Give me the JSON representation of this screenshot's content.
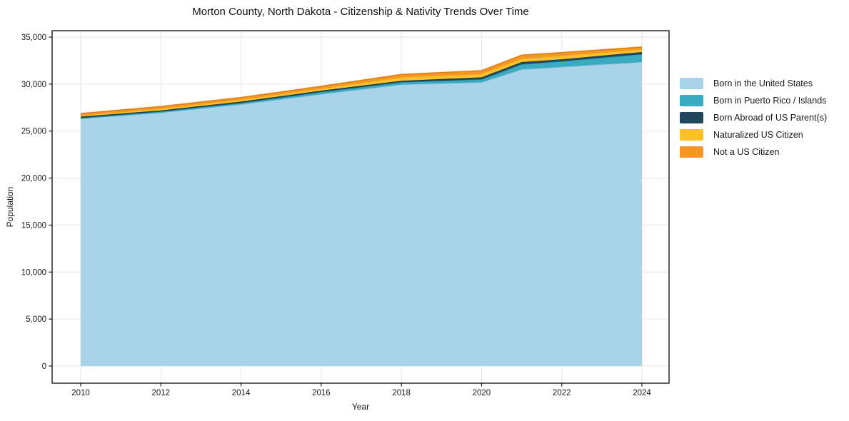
{
  "title": "Morton County, North Dakota - Citizenship & Nativity Trends Over Time",
  "axes": {
    "x_label": "Year",
    "y_label": "Population",
    "x_tick_labels": [
      "2010",
      "2012",
      "2014",
      "2016",
      "2018",
      "2020",
      "2022",
      "2024"
    ],
    "y_tick_labels": [
      "0",
      "5,000",
      "10,000",
      "15,000",
      "20,000",
      "25,000",
      "30,000",
      "35,000"
    ]
  },
  "colors": {
    "background": "#ffffff",
    "gridline": "#e6e6e6",
    "spine": "#1a1a1a",
    "tick_text": "#1a1a1a"
  },
  "chart_data": {
    "type": "area",
    "stacked": true,
    "title": "Morton County, North Dakota - Citizenship & Nativity Trends Over Time",
    "xlabel": "Year",
    "ylabel": "Population",
    "grid": true,
    "legend_position": "right",
    "xlim": [
      2009.3,
      2024.7
    ],
    "ylim": [
      -1850,
      35710
    ],
    "x_ticks": [
      2010,
      2012,
      2014,
      2016,
      2018,
      2020,
      2022,
      2024
    ],
    "y_ticks": [
      0,
      5000,
      10000,
      15000,
      20000,
      25000,
      30000,
      35000
    ],
    "x": [
      2010,
      2011,
      2012,
      2013,
      2014,
      2015,
      2016,
      2017,
      2018,
      2019,
      2020,
      2021,
      2022,
      2023,
      2024
    ],
    "series": [
      {
        "name": "Born in the United States",
        "color": "#a9d3e8",
        "edge_color": "#8ec4e0",
        "values": [
          26310,
          26630,
          26950,
          27400,
          27840,
          28380,
          28930,
          29440,
          29950,
          30070,
          30190,
          31560,
          31830,
          32090,
          32340
        ]
      },
      {
        "name": "Born in Puerto Rico / Islands",
        "color": "#3aabc0",
        "edge_color": "#2b96aa",
        "values": [
          80,
          105,
          130,
          140,
          150,
          190,
          225,
          240,
          250,
          280,
          310,
          550,
          590,
          715,
          840
        ]
      },
      {
        "name": "Born Abroad of US Parent(s)",
        "color": "#20475c",
        "edge_color": "#15374a",
        "values": [
          150,
          135,
          120,
          135,
          150,
          150,
          150,
          150,
          150,
          185,
          220,
          230,
          220,
          225,
          230
        ]
      },
      {
        "name": "Naturalized US Citizen",
        "color": "#fcc02d",
        "edge_color": "#edaa14",
        "values": [
          150,
          175,
          200,
          215,
          230,
          230,
          230,
          305,
          380,
          380,
          380,
          380,
          380,
          345,
          310
        ]
      },
      {
        "name": "Not a US Citizen",
        "color": "#f59627",
        "edge_color": "#e07f14",
        "values": [
          180,
          195,
          210,
          205,
          200,
          215,
          230,
          265,
          300,
          315,
          330,
          360,
          330,
          275,
          220
        ]
      }
    ],
    "totals": [
      26870,
      27240,
      27610,
      28095,
      28570,
      29165,
      29765,
      30400,
      31030,
      31230,
      31430,
      33080,
      33350,
      33650,
      33940
    ]
  }
}
